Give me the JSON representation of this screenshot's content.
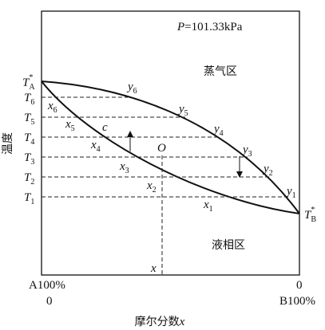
{
  "pressure": {
    "symbol": "P",
    "value": "=101.33kPa"
  },
  "regions": {
    "vapor": "蒸气区",
    "liquid": "液相区"
  },
  "y_axis_label": "温度",
  "x_axis_label": {
    "text": "摩尔分数",
    "symbol": "x"
  },
  "left_end": {
    "component": "A100%",
    "value": "0"
  },
  "right_end": {
    "value": "0",
    "component": "B100%"
  },
  "temperatures": {
    "TA": {
      "symbol": "T",
      "sup": "*",
      "sub": "A"
    },
    "T6": {
      "symbol": "T",
      "sub": "6"
    },
    "T5": {
      "symbol": "T",
      "sub": "5"
    },
    "T4": {
      "symbol": "T",
      "sub": "4"
    },
    "T3": {
      "symbol": "T",
      "sub": "3"
    },
    "T2": {
      "symbol": "T",
      "sub": "2"
    },
    "T1": {
      "symbol": "T",
      "sub": "1"
    },
    "TB": {
      "symbol": "T",
      "sup": "*",
      "sub": "B"
    }
  },
  "vapor_points": [
    {
      "symbol": "y",
      "sub": "6"
    },
    {
      "symbol": "y",
      "sub": "5"
    },
    {
      "symbol": "y",
      "sub": "4"
    },
    {
      "symbol": "y",
      "sub": "3"
    },
    {
      "symbol": "y",
      "sub": "2"
    },
    {
      "symbol": "y",
      "sub": "1"
    }
  ],
  "liquid_points": [
    {
      "symbol": "x",
      "sub": "6"
    },
    {
      "symbol": "x",
      "sub": "5"
    },
    {
      "symbol": "x",
      "sub": "4"
    },
    {
      "symbol": "x",
      "sub": "3"
    },
    {
      "symbol": "x",
      "sub": "2"
    },
    {
      "symbol": "x",
      "sub": "1"
    }
  ],
  "point_c": "c",
  "point_O": "O",
  "point_x": "x"
}
